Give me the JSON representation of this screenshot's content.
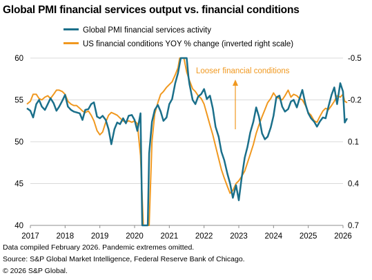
{
  "title": "Global PMI financial services output vs. financial conditions",
  "footer": {
    "line1": "Data compiled February 2026. Pandemic extremes omitted.",
    "line2": "Source: S&P Global Market Intelligence, Federal Reserve Bank of Chicago.",
    "line3": "© 2026 S&P Global."
  },
  "chart_data": {
    "type": "line",
    "legend_position": "top",
    "grid": "horizontal",
    "x_ticks": [
      "2017",
      "2018",
      "2019",
      "2020",
      "2021",
      "2022",
      "2023",
      "2024",
      "2025",
      "2026"
    ],
    "y_left": {
      "ticks": [
        40,
        45,
        50,
        55,
        60
      ],
      "range": [
        40,
        60
      ]
    },
    "y_right": {
      "ticks": [
        -0.5,
        -0.2,
        0.1,
        0.4,
        0.7
      ],
      "range": [
        -0.5,
        0.7
      ],
      "inverted": true
    },
    "annotation": {
      "text": "Looser financial conditions",
      "arrow": "up"
    },
    "colors": {
      "pmi": "#1a6f8a",
      "fci": "#f0981f"
    },
    "series": [
      {
        "name": "Global PMI financial services activity",
        "axis": "left",
        "points": [
          [
            2016.9,
            54.0
          ],
          [
            2017.0,
            53.7
          ],
          [
            2017.08,
            52.9
          ],
          [
            2017.17,
            54.5
          ],
          [
            2017.25,
            55.0
          ],
          [
            2017.33,
            54.2
          ],
          [
            2017.42,
            53.8
          ],
          [
            2017.5,
            54.5
          ],
          [
            2017.58,
            55.2
          ],
          [
            2017.67,
            54.6
          ],
          [
            2017.75,
            53.7
          ],
          [
            2017.83,
            54.2
          ],
          [
            2017.92,
            54.9
          ],
          [
            2018.0,
            55.6
          ],
          [
            2018.08,
            54.2
          ],
          [
            2018.17,
            53.8
          ],
          [
            2018.25,
            53.6
          ],
          [
            2018.33,
            53.5
          ],
          [
            2018.42,
            53.4
          ],
          [
            2018.5,
            52.6
          ],
          [
            2018.58,
            53.8
          ],
          [
            2018.67,
            53.9
          ],
          [
            2018.75,
            54.5
          ],
          [
            2018.83,
            54.7
          ],
          [
            2018.92,
            53.0
          ],
          [
            2019.0,
            52.8
          ],
          [
            2019.08,
            53.1
          ],
          [
            2019.17,
            52.6
          ],
          [
            2019.25,
            51.5
          ],
          [
            2019.33,
            49.7
          ],
          [
            2019.42,
            51.5
          ],
          [
            2019.5,
            52.3
          ],
          [
            2019.58,
            52.1
          ],
          [
            2019.67,
            52.8
          ],
          [
            2019.75,
            52.2
          ],
          [
            2019.83,
            53.1
          ],
          [
            2019.92,
            53.2
          ],
          [
            2020.0,
            52.6
          ],
          [
            2020.08,
            51.3
          ],
          [
            2020.17,
            53.4
          ],
          [
            2020.22,
            40.0
          ],
          [
            2020.38,
            40.0
          ],
          [
            2020.42,
            48.6
          ],
          [
            2020.5,
            52.4
          ],
          [
            2020.58,
            53.8
          ],
          [
            2020.67,
            54.4
          ],
          [
            2020.75,
            53.6
          ],
          [
            2020.83,
            52.5
          ],
          [
            2020.92,
            52.9
          ],
          [
            2021.0,
            54.5
          ],
          [
            2021.08,
            55.1
          ],
          [
            2021.17,
            57.0
          ],
          [
            2021.25,
            58.2
          ],
          [
            2021.33,
            60.0
          ],
          [
            2021.5,
            60.0
          ],
          [
            2021.55,
            57.8
          ],
          [
            2021.58,
            56.9
          ],
          [
            2021.67,
            55.0
          ],
          [
            2021.75,
            54.5
          ],
          [
            2021.83,
            55.4
          ],
          [
            2021.92,
            55.7
          ],
          [
            2022.0,
            56.3
          ],
          [
            2022.08,
            55.1
          ],
          [
            2022.17,
            55.5
          ],
          [
            2022.25,
            54.0
          ],
          [
            2022.33,
            51.8
          ],
          [
            2022.42,
            50.6
          ],
          [
            2022.5,
            48.8
          ],
          [
            2022.58,
            47.8
          ],
          [
            2022.67,
            46.2
          ],
          [
            2022.75,
            45.0
          ],
          [
            2022.83,
            43.3
          ],
          [
            2022.92,
            44.8
          ],
          [
            2023.0,
            43.0
          ],
          [
            2023.08,
            45.6
          ],
          [
            2023.17,
            48.1
          ],
          [
            2023.25,
            49.4
          ],
          [
            2023.33,
            51.1
          ],
          [
            2023.42,
            52.4
          ],
          [
            2023.5,
            54.1
          ],
          [
            2023.58,
            53.0
          ],
          [
            2023.67,
            51.0
          ],
          [
            2023.75,
            50.3
          ],
          [
            2023.83,
            50.6
          ],
          [
            2023.92,
            51.7
          ],
          [
            2024.0,
            53.1
          ],
          [
            2024.08,
            55.3
          ],
          [
            2024.17,
            55.5
          ],
          [
            2024.25,
            54.2
          ],
          [
            2024.33,
            53.6
          ],
          [
            2024.42,
            53.9
          ],
          [
            2024.5,
            54.8
          ],
          [
            2024.58,
            55.0
          ],
          [
            2024.67,
            54.1
          ],
          [
            2024.75,
            55.2
          ],
          [
            2024.83,
            56.2
          ],
          [
            2024.92,
            54.5
          ],
          [
            2025.0,
            53.4
          ],
          [
            2025.08,
            52.8
          ],
          [
            2025.17,
            52.4
          ],
          [
            2025.25,
            51.8
          ],
          [
            2025.33,
            52.4
          ],
          [
            2025.42,
            52.9
          ],
          [
            2025.5,
            52.8
          ],
          [
            2025.58,
            54.2
          ],
          [
            2025.67,
            55.6
          ],
          [
            2025.75,
            56.5
          ],
          [
            2025.83,
            54.5
          ],
          [
            2025.92,
            57.0
          ],
          [
            2026.0,
            56.0
          ],
          [
            2026.05,
            52.3
          ],
          [
            2026.12,
            52.8
          ]
        ]
      },
      {
        "name": "US financial conditions YOY % change (inverted right scale)",
        "axis": "right",
        "points": [
          [
            2016.9,
            -0.17
          ],
          [
            2017.0,
            -0.19
          ],
          [
            2017.08,
            -0.24
          ],
          [
            2017.17,
            -0.24
          ],
          [
            2017.25,
            -0.21
          ],
          [
            2017.33,
            -0.2
          ],
          [
            2017.42,
            -0.22
          ],
          [
            2017.5,
            -0.23
          ],
          [
            2017.58,
            -0.21
          ],
          [
            2017.67,
            -0.24
          ],
          [
            2017.75,
            -0.27
          ],
          [
            2017.83,
            -0.27
          ],
          [
            2017.92,
            -0.26
          ],
          [
            2018.0,
            -0.24
          ],
          [
            2018.08,
            -0.19
          ],
          [
            2018.17,
            -0.17
          ],
          [
            2018.25,
            -0.16
          ],
          [
            2018.33,
            -0.16
          ],
          [
            2018.42,
            -0.14
          ],
          [
            2018.5,
            -0.12
          ],
          [
            2018.58,
            -0.11
          ],
          [
            2018.67,
            -0.12
          ],
          [
            2018.75,
            -0.09
          ],
          [
            2018.83,
            -0.05
          ],
          [
            2018.92,
            0.02
          ],
          [
            2019.0,
            0.05
          ],
          [
            2019.08,
            0.03
          ],
          [
            2019.17,
            -0.04
          ],
          [
            2019.25,
            -0.09
          ],
          [
            2019.33,
            -0.11
          ],
          [
            2019.42,
            -0.1
          ],
          [
            2019.5,
            -0.09
          ],
          [
            2019.58,
            -0.07
          ],
          [
            2019.67,
            -0.05
          ],
          [
            2019.75,
            -0.04
          ],
          [
            2019.83,
            -0.05
          ],
          [
            2019.92,
            -0.04
          ],
          [
            2020.0,
            -0.05
          ],
          [
            2020.08,
            -0.03
          ],
          [
            2020.17,
            0.2
          ],
          [
            2020.25,
            0.7
          ],
          [
            2020.42,
            0.7
          ],
          [
            2020.5,
            0.1
          ],
          [
            2020.58,
            -0.1
          ],
          [
            2020.67,
            -0.18
          ],
          [
            2020.75,
            -0.24
          ],
          [
            2020.83,
            -0.26
          ],
          [
            2020.92,
            -0.29
          ],
          [
            2021.0,
            -0.31
          ],
          [
            2021.08,
            -0.33
          ],
          [
            2021.17,
            -0.38
          ],
          [
            2021.25,
            -0.43
          ],
          [
            2021.3,
            -0.5
          ],
          [
            2021.42,
            -0.5
          ],
          [
            2021.5,
            -0.4
          ],
          [
            2021.58,
            -0.34
          ],
          [
            2021.67,
            -0.28
          ],
          [
            2021.75,
            -0.26
          ],
          [
            2021.83,
            -0.23
          ],
          [
            2021.92,
            -0.21
          ],
          [
            2022.0,
            -0.17
          ],
          [
            2022.08,
            -0.1
          ],
          [
            2022.17,
            -0.02
          ],
          [
            2022.25,
            0.05
          ],
          [
            2022.33,
            0.13
          ],
          [
            2022.42,
            0.22
          ],
          [
            2022.5,
            0.3
          ],
          [
            2022.58,
            0.36
          ],
          [
            2022.67,
            0.42
          ],
          [
            2022.75,
            0.47
          ],
          [
            2022.83,
            0.45
          ],
          [
            2022.92,
            0.4
          ],
          [
            2023.0,
            0.38
          ],
          [
            2023.08,
            0.35
          ],
          [
            2023.17,
            0.31
          ],
          [
            2023.25,
            0.25
          ],
          [
            2023.33,
            0.19
          ],
          [
            2023.42,
            0.12
          ],
          [
            2023.5,
            0.04
          ],
          [
            2023.58,
            -0.02
          ],
          [
            2023.67,
            -0.08
          ],
          [
            2023.75,
            -0.13
          ],
          [
            2023.83,
            -0.18
          ],
          [
            2023.92,
            -0.21
          ],
          [
            2024.0,
            -0.25
          ],
          [
            2024.08,
            -0.22
          ],
          [
            2024.17,
            -0.21
          ],
          [
            2024.25,
            -0.2
          ],
          [
            2024.33,
            -0.23
          ],
          [
            2024.42,
            -0.27
          ],
          [
            2024.5,
            -0.22
          ],
          [
            2024.58,
            -0.24
          ],
          [
            2024.67,
            -0.23
          ],
          [
            2024.75,
            -0.21
          ],
          [
            2024.83,
            -0.2
          ],
          [
            2024.92,
            -0.16
          ],
          [
            2025.0,
            -0.11
          ],
          [
            2025.08,
            -0.09
          ],
          [
            2025.17,
            -0.05
          ],
          [
            2025.25,
            -0.04
          ],
          [
            2025.33,
            -0.08
          ],
          [
            2025.42,
            -0.12
          ],
          [
            2025.5,
            -0.14
          ],
          [
            2025.58,
            -0.13
          ],
          [
            2025.67,
            -0.16
          ],
          [
            2025.75,
            -0.19
          ],
          [
            2025.83,
            -0.23
          ],
          [
            2025.92,
            -0.22
          ],
          [
            2026.0,
            -0.24
          ],
          [
            2026.05,
            -0.19
          ],
          [
            2026.12,
            -0.18
          ]
        ]
      }
    ]
  }
}
